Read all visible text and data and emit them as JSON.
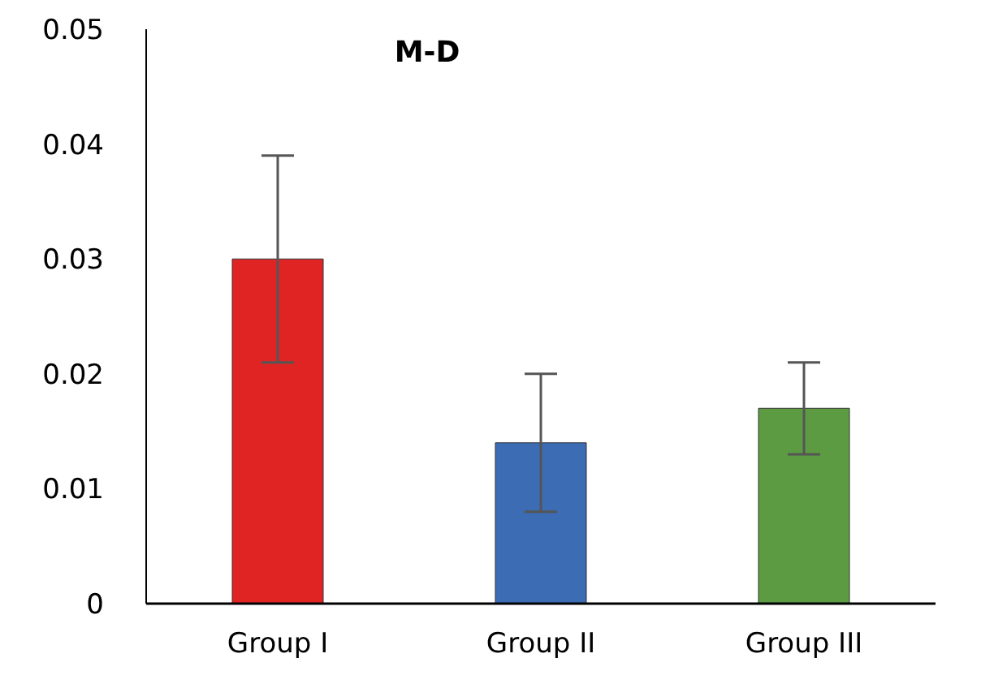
{
  "chart_data": {
    "type": "bar",
    "title": "M-D",
    "categories": [
      "Group I",
      "Group II",
      "Group III"
    ],
    "values": [
      0.03,
      0.014,
      0.017
    ],
    "errors": [
      0.009,
      0.006,
      0.004
    ],
    "colors": [
      "#e02424",
      "#3b6cb4",
      "#5c9b42"
    ],
    "ylim": [
      0,
      0.05
    ],
    "yticks": [
      0,
      0.01,
      0.02,
      0.03,
      0.04,
      0.05
    ],
    "grid": false
  }
}
